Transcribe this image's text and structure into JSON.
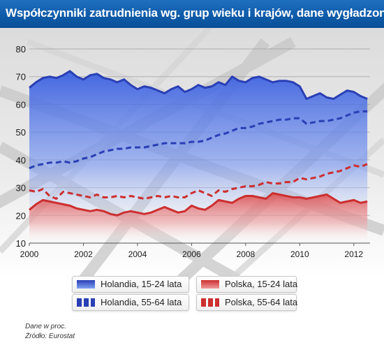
{
  "header": {
    "title": "Współczynniki zatrudnienia wg. grup wieku i krajów, dane wygładzone"
  },
  "chart_data": {
    "type": "line",
    "title": "Współczynniki zatrudnienia wg. grup wieku i krajów, dane wygładzone",
    "xlabel": "",
    "ylabel": "",
    "xlim": [
      2000,
      2012.6
    ],
    "ylim": [
      10,
      80
    ],
    "xticks": [
      "2000",
      "2002",
      "2004",
      "2006",
      "2008",
      "2010",
      "2012"
    ],
    "yticks": [
      "10",
      "20",
      "30",
      "40",
      "50",
      "60",
      "70",
      "80"
    ],
    "grid": "horizontal",
    "legend_position": "bottom",
    "series": [
      {
        "name": "Holandia, 15-24 lata",
        "color": "#2a3fb5",
        "fill": "blue-gradient",
        "style": "solid",
        "x": [
          2000,
          2000.25,
          2000.5,
          2000.75,
          2001,
          2001.25,
          2001.5,
          2001.75,
          2002,
          2002.25,
          2002.5,
          2002.75,
          2003,
          2003.25,
          2003.5,
          2003.75,
          2004,
          2004.25,
          2004.5,
          2004.75,
          2005,
          2005.25,
          2005.5,
          2005.75,
          2006,
          2006.25,
          2006.5,
          2006.75,
          2007,
          2007.25,
          2007.5,
          2007.75,
          2008,
          2008.25,
          2008.5,
          2008.75,
          2009,
          2009.25,
          2009.5,
          2009.75,
          2010,
          2010.25,
          2010.5,
          2010.75,
          2011,
          2011.25,
          2011.5,
          2011.75,
          2012,
          2012.25,
          2012.5
        ],
        "values": [
          66,
          68,
          69.5,
          70,
          69.5,
          70.5,
          72,
          70,
          69,
          70.5,
          71,
          69.5,
          69,
          68,
          69,
          67,
          65.5,
          66.5,
          66,
          65,
          64,
          65.5,
          66.5,
          64.5,
          65.5,
          67,
          66,
          66.5,
          68,
          67,
          70,
          68.5,
          68,
          69.5,
          70,
          69,
          68,
          68.5,
          68.5,
          68,
          66.5,
          62,
          63,
          64,
          62.5,
          62,
          63.5,
          65,
          64.5,
          63,
          62
        ]
      },
      {
        "name": "Holandia, 55-64 lata",
        "color": "#2a3fb5",
        "style": "dashed",
        "x": [
          2000,
          2000.25,
          2000.5,
          2000.75,
          2001,
          2001.25,
          2001.5,
          2001.75,
          2002,
          2002.25,
          2002.5,
          2002.75,
          2003,
          2003.25,
          2003.5,
          2003.75,
          2004,
          2004.25,
          2004.5,
          2004.75,
          2005,
          2005.25,
          2005.5,
          2005.75,
          2006,
          2006.25,
          2006.5,
          2006.75,
          2007,
          2007.25,
          2007.5,
          2007.75,
          2008,
          2008.25,
          2008.5,
          2008.75,
          2009,
          2009.25,
          2009.5,
          2009.75,
          2010,
          2010.25,
          2010.5,
          2010.75,
          2011,
          2011.25,
          2011.5,
          2011.75,
          2012,
          2012.25,
          2012.5
        ],
        "values": [
          37,
          38,
          38.5,
          39,
          39,
          39.5,
          39,
          39.5,
          40.5,
          41,
          42,
          43,
          43.5,
          44,
          44,
          44.5,
          44.5,
          44.5,
          45,
          45.5,
          46,
          46,
          46,
          46,
          46.5,
          46.5,
          47,
          48,
          49,
          49.5,
          50.5,
          51.5,
          51.5,
          52,
          53,
          53.5,
          54,
          54.5,
          54.5,
          55,
          55,
          53,
          53.5,
          54,
          54,
          54.5,
          55,
          56,
          57,
          57.5,
          57.5
        ]
      },
      {
        "name": "Polska, 15-24 lata",
        "color": "#cc2f2f",
        "fill": "red-gradient",
        "style": "solid",
        "x": [
          2000,
          2000.25,
          2000.5,
          2000.75,
          2001,
          2001.25,
          2001.5,
          2001.75,
          2002,
          2002.25,
          2002.5,
          2002.75,
          2003,
          2003.25,
          2003.5,
          2003.75,
          2004,
          2004.25,
          2004.5,
          2004.75,
          2005,
          2005.25,
          2005.5,
          2005.75,
          2006,
          2006.25,
          2006.5,
          2006.75,
          2007,
          2007.25,
          2007.5,
          2007.75,
          2008,
          2008.25,
          2008.5,
          2008.75,
          2009,
          2009.25,
          2009.5,
          2009.75,
          2010,
          2010.25,
          2010.5,
          2010.75,
          2011,
          2011.25,
          2011.5,
          2011.75,
          2012,
          2012.25,
          2012.5
        ],
        "values": [
          22,
          24,
          25.5,
          25,
          24.5,
          24,
          23.5,
          22.5,
          22,
          21.5,
          22,
          21.5,
          20.5,
          20,
          21,
          21.5,
          21,
          20.5,
          21,
          22,
          23,
          22,
          21,
          21.5,
          23.5,
          22.5,
          22,
          23.5,
          25.5,
          25,
          24.5,
          26,
          27,
          27,
          26.5,
          26,
          28,
          27.5,
          27,
          26.5,
          26.5,
          26,
          26.5,
          27,
          27.5,
          26,
          24.5,
          25,
          25.5,
          24.5,
          25
        ]
      },
      {
        "name": "Polska, 55-64 lata",
        "color": "#cc2f2f",
        "style": "dashed",
        "x": [
          2000,
          2000.25,
          2000.5,
          2000.75,
          2001,
          2001.25,
          2001.5,
          2001.75,
          2002,
          2002.25,
          2002.5,
          2002.75,
          2003,
          2003.25,
          2003.5,
          2003.75,
          2004,
          2004.25,
          2004.5,
          2004.75,
          2005,
          2005.25,
          2005.5,
          2005.75,
          2006,
          2006.25,
          2006.5,
          2006.75,
          2007,
          2007.25,
          2007.5,
          2007.75,
          2008,
          2008.25,
          2008.5,
          2008.75,
          2009,
          2009.25,
          2009.5,
          2009.75,
          2010,
          2010.25,
          2010.5,
          2010.75,
          2011,
          2011.25,
          2011.5,
          2011.75,
          2012,
          2012.25,
          2012.5
        ],
        "values": [
          29,
          28.5,
          29.5,
          27,
          26,
          28.5,
          28,
          27.5,
          27,
          26.5,
          27.5,
          26.5,
          26.5,
          27,
          26.5,
          27,
          26.5,
          26,
          26.5,
          27,
          26.5,
          27,
          26.5,
          26.5,
          28,
          29,
          28,
          27,
          29,
          28.5,
          29.5,
          30,
          30.5,
          30.5,
          31,
          32,
          31.5,
          31.5,
          32,
          32,
          33.5,
          33,
          33.5,
          34,
          35,
          35.5,
          36,
          37,
          38,
          37.5,
          38.5
        ]
      }
    ]
  },
  "footnotes": {
    "unit": "Dane w proc.",
    "source": "Źródło: Eurostat"
  }
}
